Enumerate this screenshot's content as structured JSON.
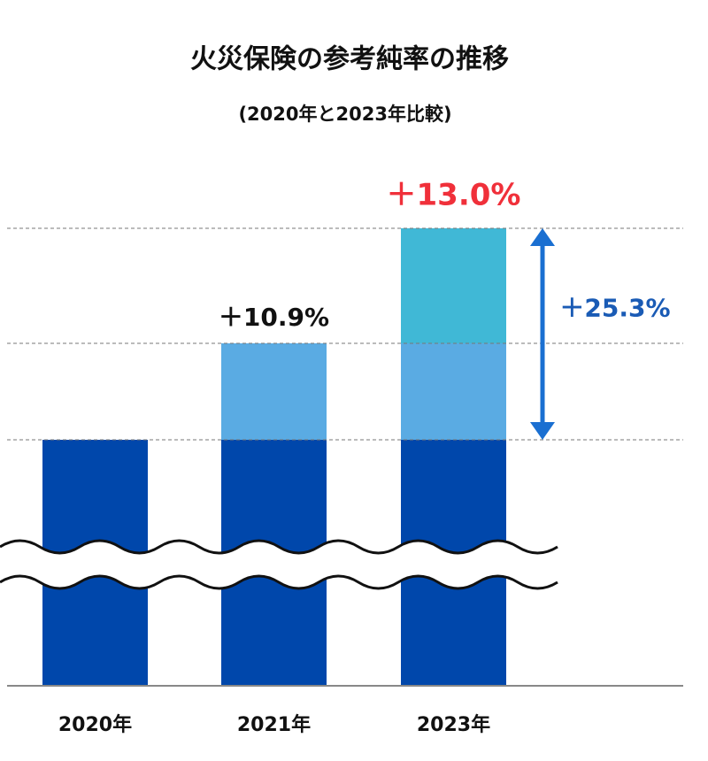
{
  "chart_data": {
    "type": "bar",
    "title": "火災保険の参考純率の推移",
    "subtitle": "(2020年と2023年比較)",
    "categories": [
      "2020年",
      "2021年",
      "2023年"
    ],
    "base_color": "#0047ab",
    "series": [
      {
        "color": "#5aabe3",
        "values": [
          null,
          10.9,
          10.9
        ],
        "value_labels": [
          null,
          "＋10.9%",
          null
        ],
        "label_color": "#111111"
      },
      {
        "color": "#40b8d6",
        "values": [
          null,
          null,
          13.0
        ],
        "value_labels": [
          null,
          null,
          "＋13.0%"
        ],
        "label_color": "#f0303a"
      }
    ],
    "annotation": {
      "value": 25.3,
      "label": "＋25.3%",
      "color": "#1a5bb5"
    }
  }
}
